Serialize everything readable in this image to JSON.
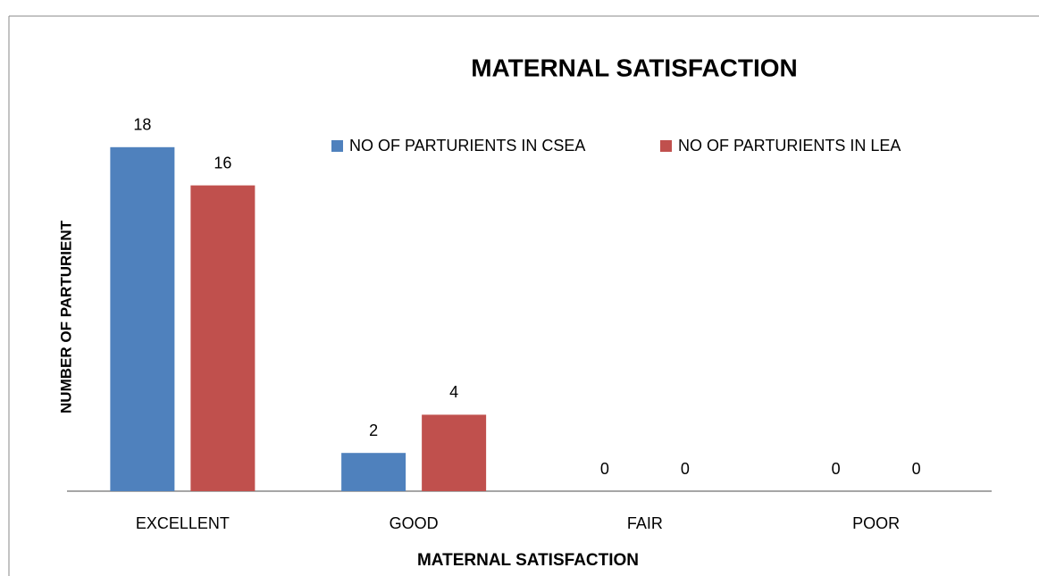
{
  "chart_data": {
    "type": "bar",
    "title": "MATERNAL  SATISFACTION",
    "x_label": "MATERNAL SATISFACTION",
    "y_label": "NUMBER OF PARTURIENT",
    "categories": [
      "EXCELLENT",
      "GOOD",
      "FAIR",
      "POOR"
    ],
    "series": [
      {
        "name": "NO OF PARTURIENTS IN CSEA",
        "color": "#4f81bd",
        "values": [
          18,
          2,
          0,
          0
        ]
      },
      {
        "name": "NO OF PARTURIENTS IN LEA",
        "color": "#c0504d",
        "values": [
          16,
          4,
          0,
          0
        ]
      }
    ],
    "ylim": [
      0,
      20
    ],
    "legend": "top"
  }
}
